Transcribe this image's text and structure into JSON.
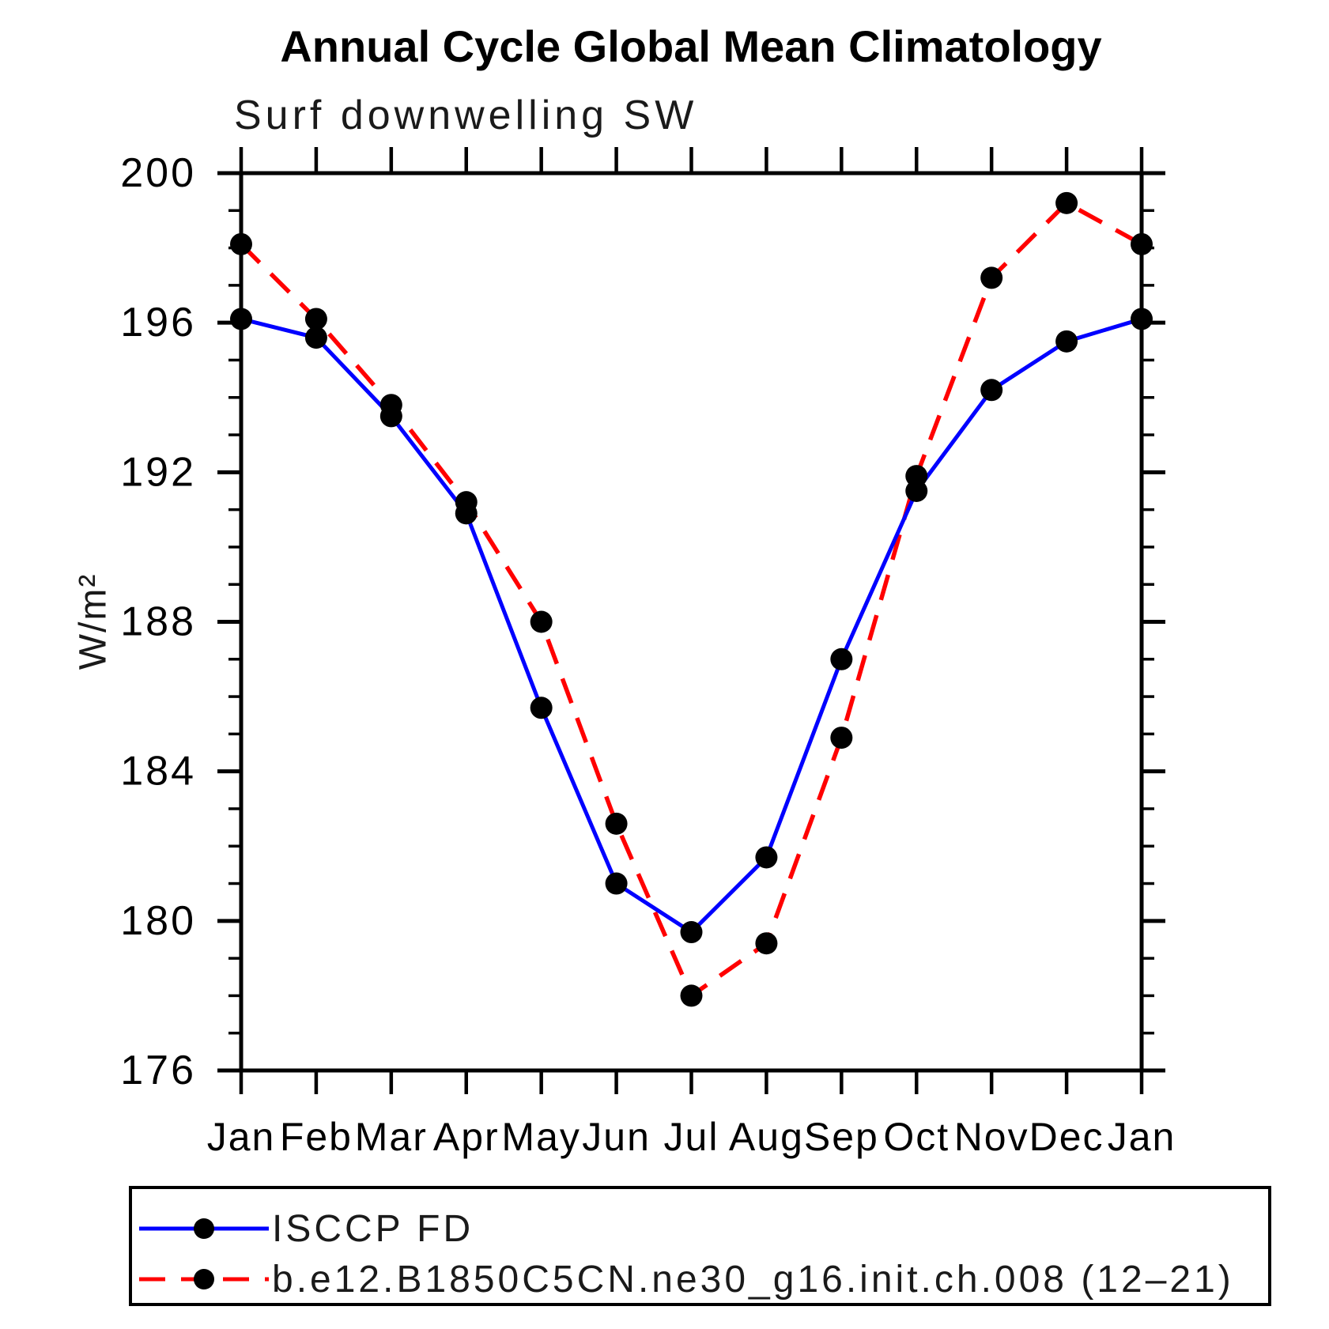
{
  "page": {
    "background": "#ffffff"
  },
  "chart": {
    "title": "Annual Cycle Global Mean Climatology",
    "subtitle": "Surf downwelling SW",
    "y_axis_label": "W/m²"
  },
  "legend": {
    "items": [
      {
        "label": "ISCCP FD",
        "color": "#0000ff",
        "style": "solid"
      },
      {
        "label": "b.e12.B1850C5CN.ne30_g16.init.ch.008 (12–21)",
        "color": "#ff0000",
        "style": "dashed"
      }
    ]
  },
  "chart_data": {
    "type": "line",
    "title": "Annual Cycle Global Mean Climatology",
    "subtitle": "Surf downwelling SW",
    "xlabel": "",
    "ylabel": "W/m²",
    "x_categories": [
      "Jan",
      "Feb",
      "Mar",
      "Apr",
      "May",
      "Jun",
      "Jul",
      "Aug",
      "Sep",
      "Oct",
      "Nov",
      "Dec",
      "Jan"
    ],
    "series": [
      {
        "name": "ISCCP FD",
        "color": "#0000ff",
        "line_style": "solid",
        "marker": "circle",
        "marker_color": "#000000",
        "values": [
          196.1,
          195.6,
          193.5,
          190.9,
          185.7,
          181.0,
          179.7,
          181.7,
          187.0,
          191.5,
          194.2,
          195.5,
          196.1
        ]
      },
      {
        "name": "b.e12.B1850C5CN.ne30_g16.init.ch.008 (12–21)",
        "color": "#ff0000",
        "line_style": "dashed",
        "marker": "circle",
        "marker_color": "#000000",
        "values": [
          198.1,
          196.1,
          193.8,
          191.2,
          188.0,
          182.6,
          178.0,
          179.4,
          184.9,
          191.9,
          197.2,
          199.2,
          198.1
        ]
      }
    ],
    "ylim": [
      176,
      200
    ],
    "y_major_ticks": [
      176,
      180,
      184,
      188,
      192,
      196,
      200
    ],
    "y_minor_tick_step": 1,
    "grid": false,
    "legend_position": "bottom",
    "axis_color": "#000000"
  }
}
